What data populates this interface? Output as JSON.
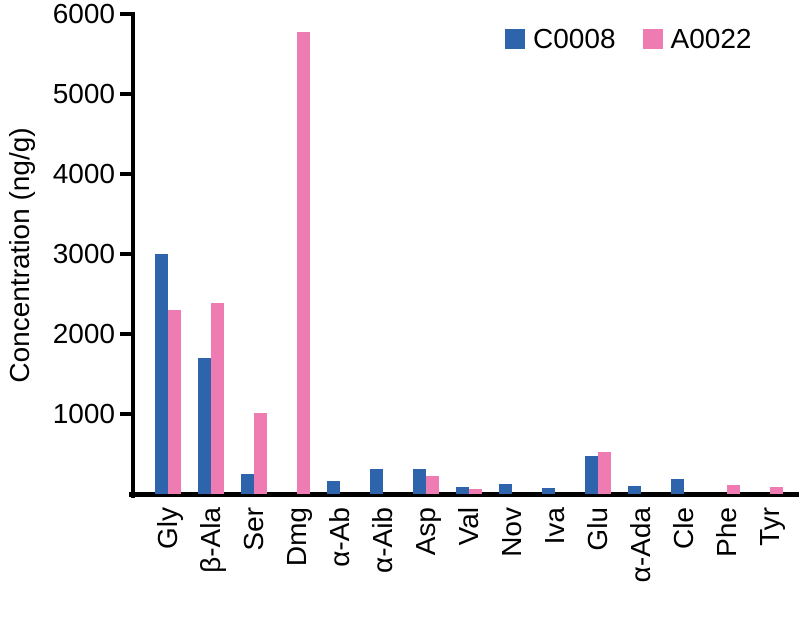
{
  "chart_data": {
    "type": "bar",
    "title": "",
    "xlabel": "",
    "ylabel": "Concentration (ng/g)",
    "ylim": [
      0,
      6000
    ],
    "yticks": [
      1000,
      2000,
      3000,
      4000,
      5000,
      6000
    ],
    "grid": false,
    "legend_position": "top-right",
    "categories": [
      "Gly",
      "β-Ala",
      "Ser",
      "Dmg",
      "α-Ab",
      "α-Aib",
      "Asp",
      "Val",
      "Nov",
      "Iva",
      "Glu",
      "α-Ada",
      "Cle",
      "Phe",
      "Tyr"
    ],
    "series": [
      {
        "name": "C0008",
        "color": "#2e64ab",
        "values": [
          3000,
          1700,
          250,
          0,
          160,
          310,
          310,
          90,
          120,
          80,
          470,
          95,
          190,
          0,
          0
        ]
      },
      {
        "name": "A0022",
        "color": "#ee7bb2",
        "values": [
          2300,
          2390,
          1010,
          5770,
          0,
          0,
          230,
          65,
          0,
          0,
          530,
          0,
          0,
          115,
          85
        ]
      }
    ],
    "axis_color": "#000000"
  }
}
